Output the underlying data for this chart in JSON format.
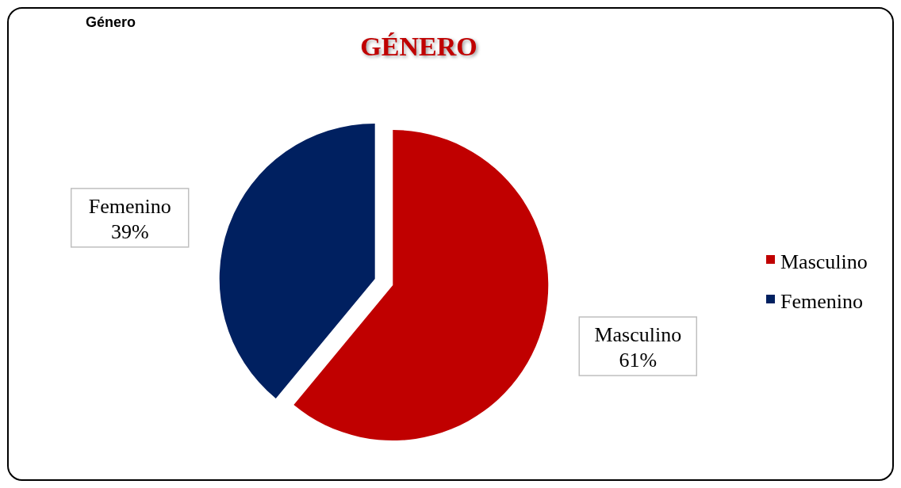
{
  "chart_data": {
    "type": "pie",
    "title": "GÉNERO",
    "annotations": [
      "Género"
    ],
    "categories": [
      "Masculino",
      "Femenino"
    ],
    "values": [
      61,
      39
    ],
    "colors": [
      "#c00000",
      "#002060"
    ],
    "value_labels": [
      "61%",
      "39%"
    ],
    "legend": "right"
  }
}
